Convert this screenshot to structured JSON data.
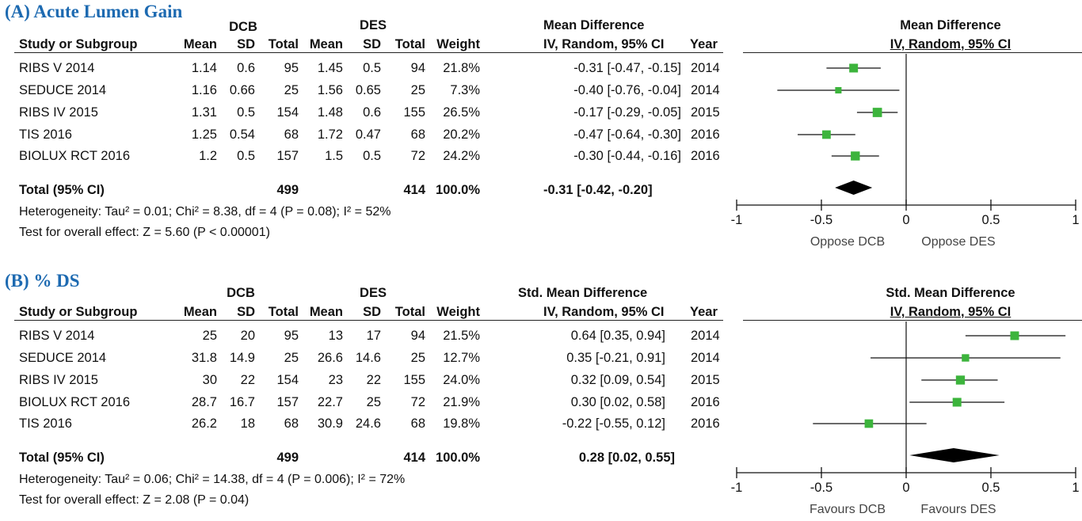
{
  "panels": [
    {
      "title": "(A) Acute Lumen Gain",
      "group1": "DCB",
      "group2": "DES",
      "effect_header": "Mean Difference",
      "method_header": "IV, Random, 95% CI",
      "year_header": "Year",
      "columns": {
        "study": "Study or Subgroup",
        "mean1": "Mean",
        "sd1": "SD",
        "total1": "Total",
        "mean2": "Mean",
        "sd2": "SD",
        "total2": "Total",
        "weight": "Weight"
      },
      "rows": [
        {
          "study": "RIBS V 2014",
          "mean1": "1.14",
          "sd1": "0.6",
          "total1": "95",
          "mean2": "1.45",
          "sd2": "0.5",
          "total2": "94",
          "weight": "21.8%",
          "ci": "-0.31 [-0.47, -0.15]",
          "year": "2014"
        },
        {
          "study": "SEDUCE 2014",
          "mean1": "1.16",
          "sd1": "0.66",
          "total1": "25",
          "mean2": "1.56",
          "sd2": "0.65",
          "total2": "25",
          "weight": "7.3%",
          "ci": "-0.40 [-0.76, -0.04]",
          "year": "2014"
        },
        {
          "study": "RIBS IV 2015",
          "mean1": "1.31",
          "sd1": "0.5",
          "total1": "154",
          "mean2": "1.48",
          "sd2": "0.6",
          "total2": "155",
          "weight": "26.5%",
          "ci": "-0.17 [-0.29, -0.05]",
          "year": "2015"
        },
        {
          "study": "TIS 2016",
          "mean1": "1.25",
          "sd1": "0.54",
          "total1": "68",
          "mean2": "1.72",
          "sd2": "0.47",
          "total2": "68",
          "weight": "20.2%",
          "ci": "-0.47 [-0.64, -0.30]",
          "year": "2016"
        },
        {
          "study": "BIOLUX RCT 2016",
          "mean1": "1.2",
          "sd1": "0.5",
          "total1": "157",
          "mean2": "1.5",
          "sd2": "0.5",
          "total2": "72",
          "weight": "24.2%",
          "ci": "-0.30 [-0.44, -0.16]",
          "year": "2016"
        }
      ],
      "total": {
        "label": "Total (95% CI)",
        "total1": "499",
        "total2": "414",
        "weight": "100.0%",
        "ci": "-0.31 [-0.42, -0.20]"
      },
      "heterogeneity": "Heterogeneity: Tau² = 0.01; Chi² = 8.38, df = 4 (P = 0.08); I² = 52%",
      "overall": "Test for overall effect: Z = 5.60 (P < 0.00001)",
      "favours_left": "Oppose DCB",
      "favours_right": "Oppose DES"
    },
    {
      "title": "(B) % DS",
      "group1": "DCB",
      "group2": "DES",
      "effect_header": "Std. Mean Difference",
      "method_header": "IV, Random, 95% CI",
      "year_header": "Year",
      "columns": {
        "study": "Study or Subgroup",
        "mean1": "Mean",
        "sd1": "SD",
        "total1": "Total",
        "mean2": "Mean",
        "sd2": "SD",
        "total2": "Total",
        "weight": "Weight"
      },
      "rows": [
        {
          "study": "RIBS V 2014",
          "mean1": "25",
          "sd1": "20",
          "total1": "95",
          "mean2": "13",
          "sd2": "17",
          "total2": "94",
          "weight": "21.5%",
          "ci": "0.64 [0.35, 0.94]",
          "year": "2014"
        },
        {
          "study": "SEDUCE 2014",
          "mean1": "31.8",
          "sd1": "14.9",
          "total1": "25",
          "mean2": "26.6",
          "sd2": "14.6",
          "total2": "25",
          "weight": "12.7%",
          "ci": "0.35 [-0.21, 0.91]",
          "year": "2014"
        },
        {
          "study": "RIBS IV 2015",
          "mean1": "30",
          "sd1": "22",
          "total1": "154",
          "mean2": "23",
          "sd2": "22",
          "total2": "155",
          "weight": "24.0%",
          "ci": "0.32 [0.09, 0.54]",
          "year": "2015"
        },
        {
          "study": "BIOLUX RCT 2016",
          "mean1": "28.7",
          "sd1": "16.7",
          "total1": "157",
          "mean2": "22.7",
          "sd2": "25",
          "total2": "72",
          "weight": "21.9%",
          "ci": "0.30 [0.02, 0.58]",
          "year": "2016"
        },
        {
          "study": "TIS 2016",
          "mean1": "26.2",
          "sd1": "18",
          "total1": "68",
          "mean2": "30.9",
          "sd2": "24.6",
          "total2": "68",
          "weight": "19.8%",
          "ci": "-0.22 [-0.55, 0.12]",
          "year": "2016"
        }
      ],
      "total": {
        "label": "Total (95% CI)",
        "total1": "499",
        "total2": "414",
        "weight": "100.0%",
        "ci": "0.28 [0.02, 0.55]"
      },
      "heterogeneity": "Heterogeneity: Tau² = 0.06; Chi² = 14.38, df = 4 (P = 0.006); I² = 72%",
      "overall": "Test for overall effect: Z = 2.08 (P = 0.04)",
      "favours_left": "Favours DCB",
      "favours_right": "Favours DES"
    }
  ],
  "chart_data": [
    {
      "type": "forest",
      "title": "(A) Acute Lumen Gain",
      "xlabel": "",
      "xlim": [
        -1,
        1
      ],
      "ticks": [
        -1,
        -0.5,
        0,
        0.5,
        1
      ],
      "tick_labels": [
        "-1",
        "-0.5",
        "0",
        "0.5",
        "1"
      ],
      "studies": [
        {
          "name": "RIBS V 2014",
          "estimate": -0.31,
          "lower": -0.47,
          "upper": -0.15,
          "weight": 21.8
        },
        {
          "name": "SEDUCE 2014",
          "estimate": -0.4,
          "lower": -0.76,
          "upper": -0.04,
          "weight": 7.3
        },
        {
          "name": "RIBS IV 2015",
          "estimate": -0.17,
          "lower": -0.29,
          "upper": -0.05,
          "weight": 26.5
        },
        {
          "name": "TIS 2016",
          "estimate": -0.47,
          "lower": -0.64,
          "upper": -0.3,
          "weight": 20.2
        },
        {
          "name": "BIOLUX RCT 2016",
          "estimate": -0.3,
          "lower": -0.44,
          "upper": -0.16,
          "weight": 24.2
        }
      ],
      "pooled": {
        "estimate": -0.31,
        "lower": -0.42,
        "upper": -0.2
      },
      "marker_color": "#3cb43c"
    },
    {
      "type": "forest",
      "title": "(B) % DS",
      "xlabel": "",
      "xlim": [
        -1,
        1
      ],
      "ticks": [
        -1,
        -0.5,
        0,
        0.5,
        1
      ],
      "tick_labels": [
        "-1",
        "-0.5",
        "0",
        "0.5",
        "1"
      ],
      "studies": [
        {
          "name": "RIBS V 2014",
          "estimate": 0.64,
          "lower": 0.35,
          "upper": 0.94,
          "weight": 21.5
        },
        {
          "name": "SEDUCE 2014",
          "estimate": 0.35,
          "lower": -0.21,
          "upper": 0.91,
          "weight": 12.7
        },
        {
          "name": "RIBS IV 2015",
          "estimate": 0.32,
          "lower": 0.09,
          "upper": 0.54,
          "weight": 24.0
        },
        {
          "name": "BIOLUX RCT 2016",
          "estimate": 0.3,
          "lower": 0.02,
          "upper": 0.58,
          "weight": 21.9
        },
        {
          "name": "TIS 2016",
          "estimate": -0.22,
          "lower": -0.55,
          "upper": 0.12,
          "weight": 19.8
        }
      ],
      "pooled": {
        "estimate": 0.28,
        "lower": 0.02,
        "upper": 0.55
      },
      "marker_color": "#3cb43c"
    }
  ]
}
